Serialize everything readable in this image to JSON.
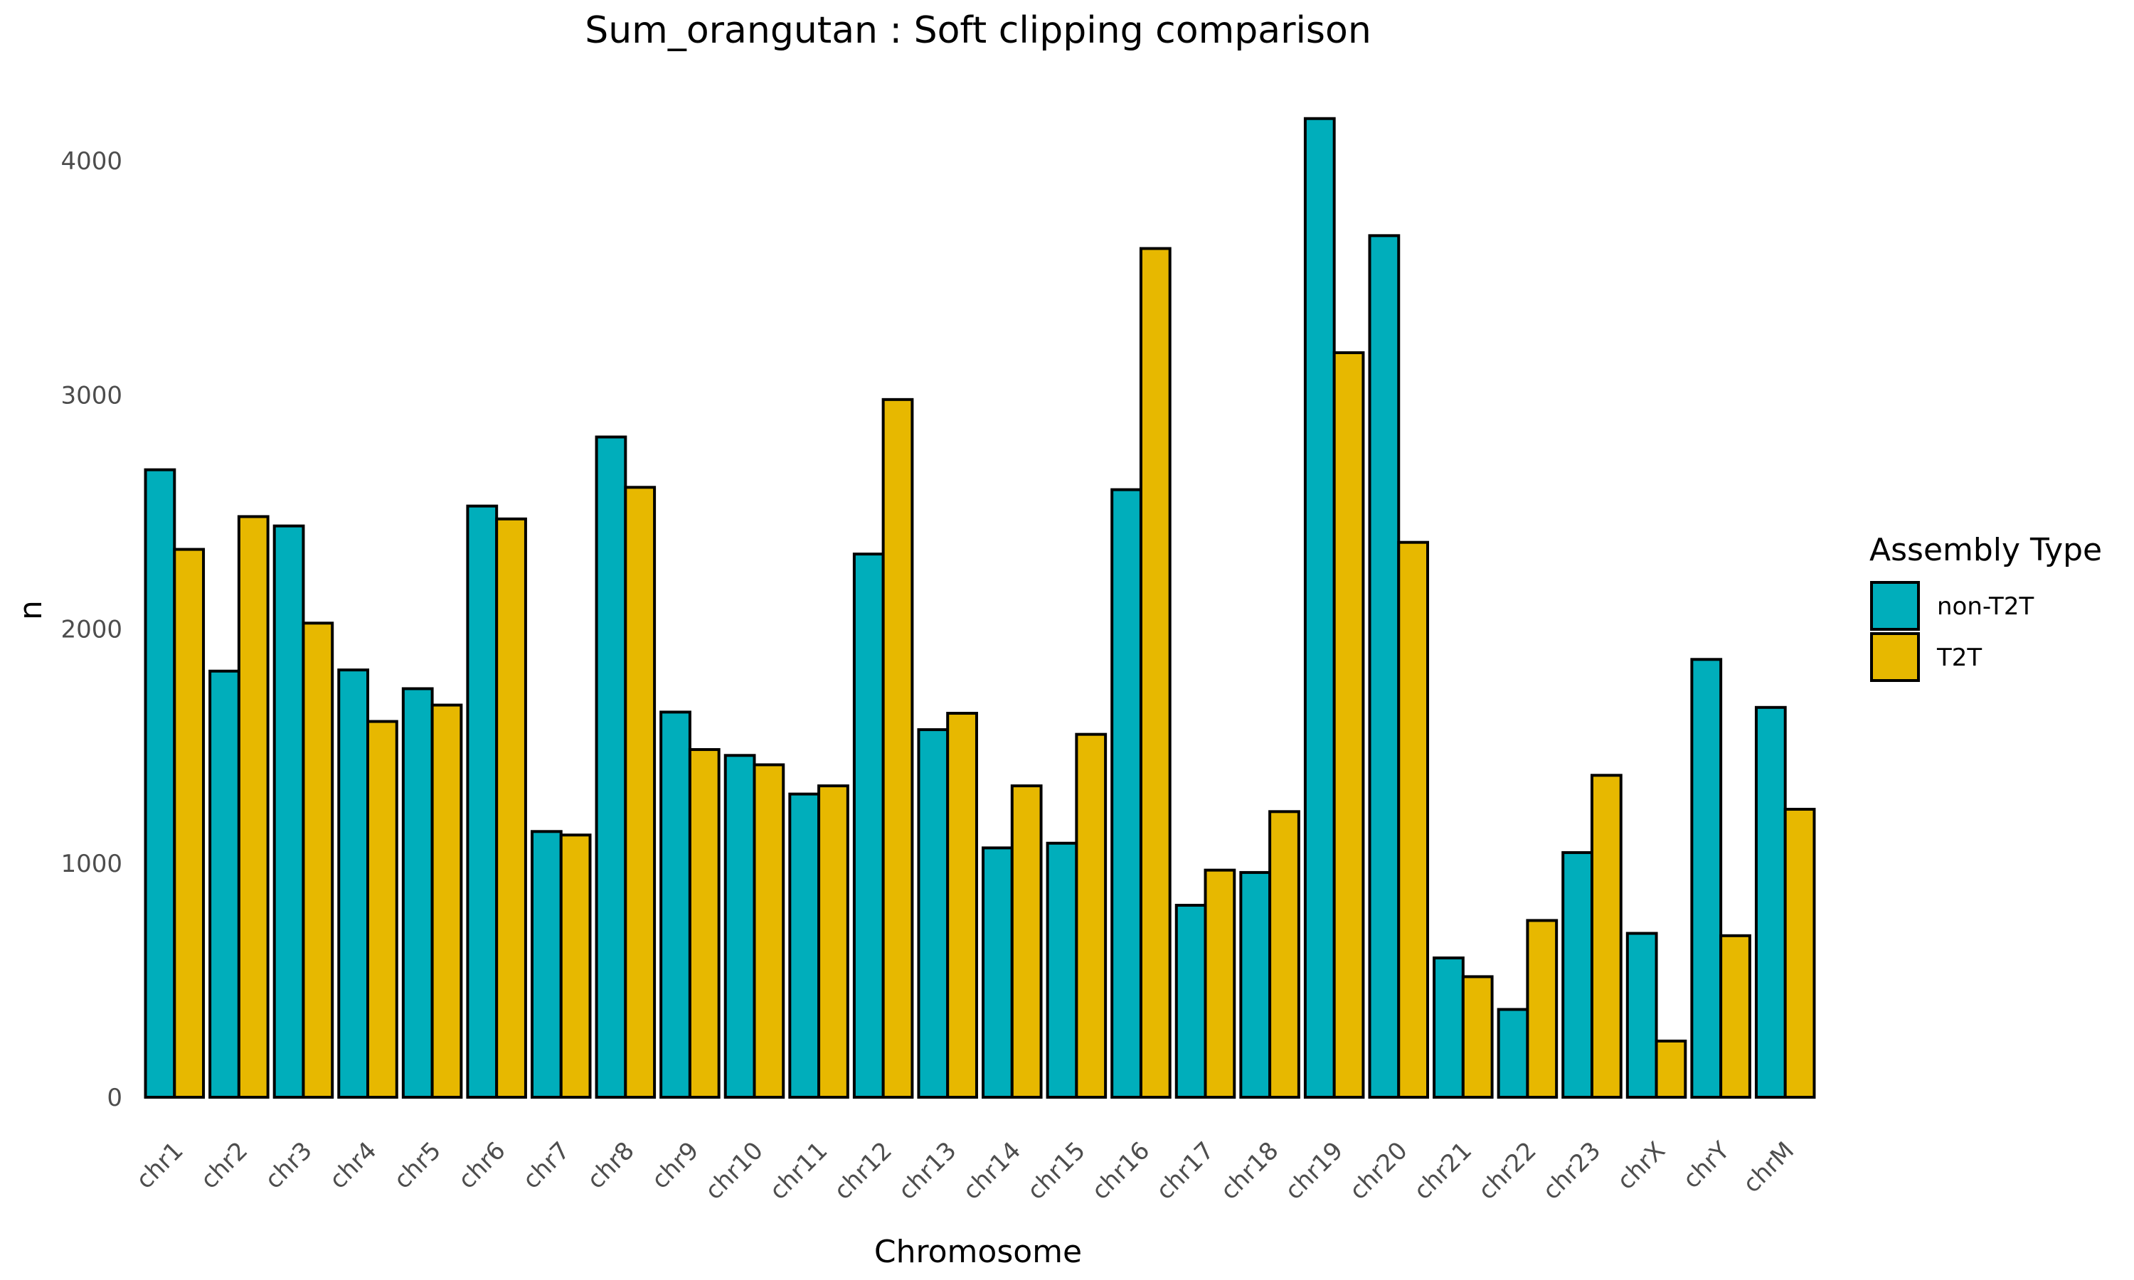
{
  "chart_data": {
    "type": "bar",
    "title": "Sum_orangutan : Soft clipping comparison",
    "xlabel": "Chromosome",
    "ylabel": "n",
    "ylim": [
      0,
      4200
    ],
    "yticks": [
      0,
      1000,
      2000,
      3000,
      4000
    ],
    "grid": false,
    "legend": {
      "title": "Assembly Type",
      "position": "right"
    },
    "categories": [
      "chr1",
      "chr2",
      "chr3",
      "chr4",
      "chr5",
      "chr6",
      "chr7",
      "chr8",
      "chr9",
      "chr10",
      "chr11",
      "chr12",
      "chr13",
      "chr14",
      "chr15",
      "chr16",
      "chr17",
      "chr18",
      "chr19",
      "chr20",
      "chr21",
      "chr22",
      "chr23",
      "chrX",
      "chrY",
      "chrM"
    ],
    "series": [
      {
        "name": "non-T2T",
        "color": "#00AEBB",
        "values": [
          2680,
          1820,
          2440,
          1825,
          1745,
          2525,
          1135,
          2820,
          1645,
          1460,
          1295,
          2320,
          1570,
          1065,
          1085,
          2595,
          820,
          960,
          4180,
          3680,
          595,
          375,
          1045,
          700,
          1870,
          1665
        ]
      },
      {
        "name": "T2T",
        "color": "#E7B800",
        "values": [
          2340,
          2480,
          2025,
          1605,
          1675,
          2470,
          1120,
          2605,
          1485,
          1420,
          1330,
          2980,
          1640,
          1330,
          1550,
          3625,
          970,
          1220,
          3180,
          2370,
          515,
          755,
          1375,
          240,
          690,
          1230
        ]
      }
    ]
  }
}
